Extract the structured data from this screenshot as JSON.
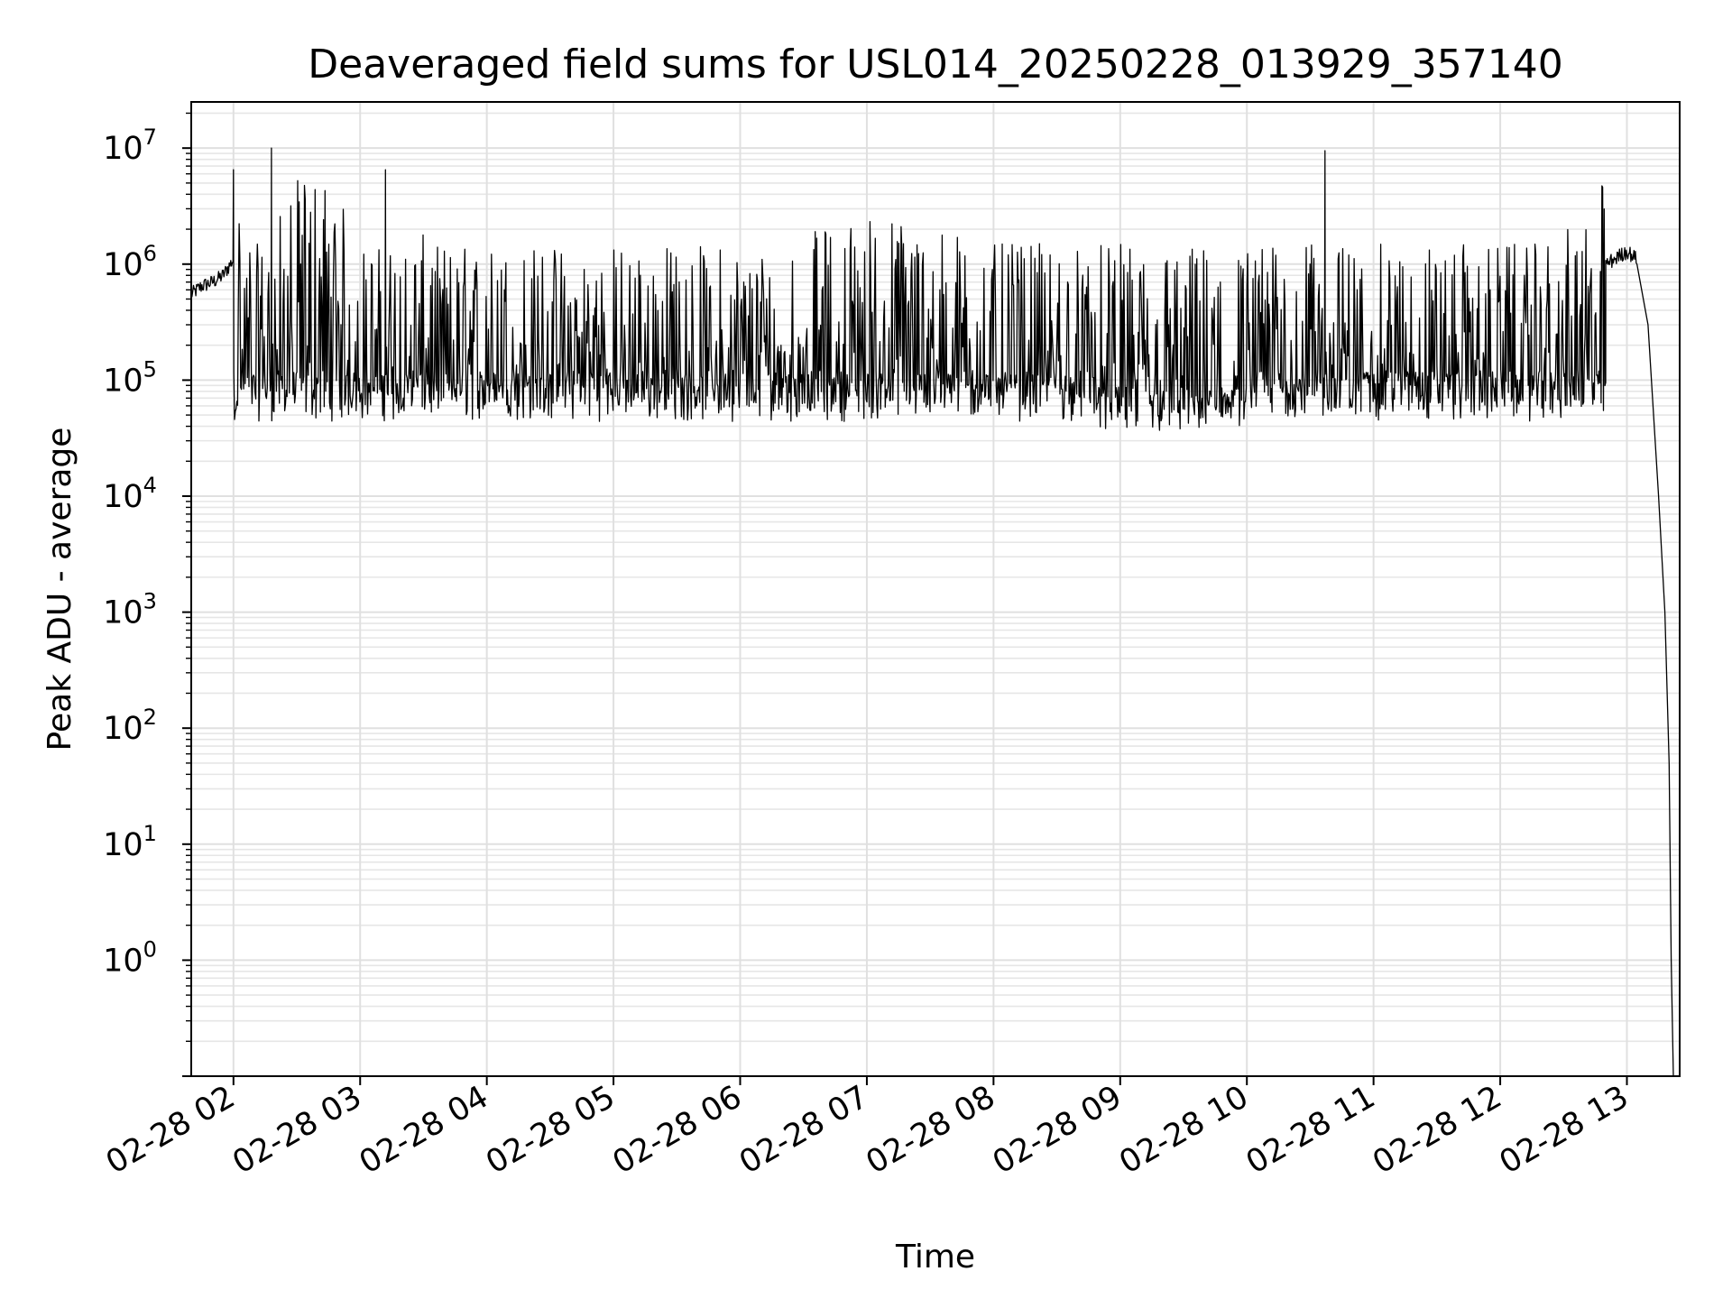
{
  "chart_data": {
    "type": "line",
    "title": "Deaveraged field sums for USL014_20250228_013929_357140",
    "xlabel": "Time",
    "ylabel": "Peak ADU - average",
    "yscale": "log",
    "ylim": [
      0.1,
      25000000
    ],
    "xlim": [
      "2025-02-28 01:40",
      "2025-02-28 13:25"
    ],
    "grid": "major-and-minor",
    "line_color": "#000000",
    "x_ticks": [
      "02-28 02",
      "02-28 03",
      "02-28 04",
      "02-28 05",
      "02-28 06",
      "02-28 07",
      "02-28 08",
      "02-28 09",
      "02-28 10",
      "02-28 11",
      "02-28 12",
      "02-28 13"
    ],
    "y_ticks": [
      {
        "value": 1,
        "base": "10",
        "exp": "0"
      },
      {
        "value": 10,
        "base": "10",
        "exp": "1"
      },
      {
        "value": 100,
        "base": "10",
        "exp": "2"
      },
      {
        "value": 1000,
        "base": "10",
        "exp": "3"
      },
      {
        "value": 10000,
        "base": "10",
        "exp": "4"
      },
      {
        "value": 100000,
        "base": "10",
        "exp": "5"
      },
      {
        "value": 1000000,
        "base": "10",
        "exp": "6"
      },
      {
        "value": 10000000,
        "base": "10",
        "exp": "7"
      }
    ],
    "series": [
      {
        "x": [
          "2025-02-28 01:40",
          "2025-02-28 01:45",
          "2025-02-28 01:50",
          "2025-02-28 01:55",
          "2025-02-28 02:00",
          "2025-02-28 02:05",
          "2025-02-28 02:10",
          "2025-02-28 02:15",
          "2025-02-28 02:20",
          "2025-02-28 02:30",
          "2025-02-28 02:40",
          "2025-02-28 02:50",
          "2025-02-28 03:00",
          "2025-02-28 03:15",
          "2025-02-28 03:30",
          "2025-02-28 03:45",
          "2025-02-28 04:00",
          "2025-02-28 04:30",
          "2025-02-28 05:00",
          "2025-02-28 05:30",
          "2025-02-28 06:00",
          "2025-02-28 06:30",
          "2025-02-28 07:00",
          "2025-02-28 07:30",
          "2025-02-28 08:00",
          "2025-02-28 08:30",
          "2025-02-28 09:00",
          "2025-02-28 09:30",
          "2025-02-28 10:00",
          "2025-02-28 10:30",
          "2025-02-28 11:00",
          "2025-02-28 11:30",
          "2025-02-28 12:00",
          "2025-02-28 12:30",
          "2025-02-28 12:50",
          "2025-02-28 13:00",
          "2025-02-28 13:05",
          "2025-02-28 13:10",
          "2025-02-28 13:15",
          "2025-02-28 13:18",
          "2025-02-28 13:20",
          "2025-02-28 13:21",
          "2025-02-28 13:22"
        ],
        "y": [
          550000,
          650000,
          700000,
          800000,
          1100000,
          500000,
          250000,
          100000,
          400000,
          900000,
          1200000,
          700000,
          180000,
          250000,
          300000,
          220000,
          180000,
          200000,
          160000,
          170000,
          180000,
          300000,
          500000,
          400000,
          250000,
          180000,
          120000,
          90000,
          100000,
          130000,
          160000,
          180000,
          200000,
          300000,
          1000000,
          1300000,
          1100000,
          300000,
          10000,
          1000,
          50,
          1,
          0.1
        ]
      }
    ],
    "notable_peaks": [
      {
        "x": "2025-02-28 02:18",
        "y": 10000000
      },
      {
        "x": "2025-02-28 10:37",
        "y": 9500000
      },
      {
        "x": "2025-02-28 03:12",
        "y": 6500000
      },
      {
        "x": "2025-02-28 02:00",
        "y": 6500000
      }
    ]
  }
}
